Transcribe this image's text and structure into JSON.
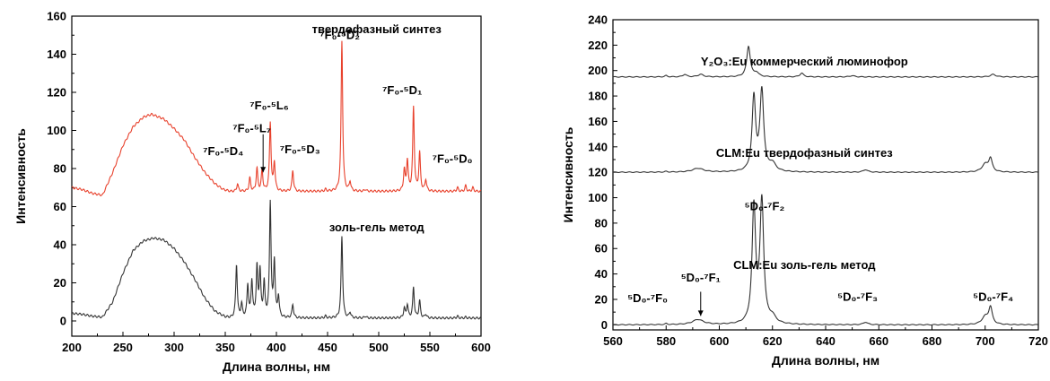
{
  "chart_data": [
    {
      "type": "line",
      "title": "",
      "xlabel": "Длина волны, нм",
      "ylabel": "Интенсивность",
      "xlim": [
        200,
        600
      ],
      "ylim": [
        -8,
        160
      ],
      "xticks": [
        200,
        250,
        300,
        350,
        400,
        450,
        500,
        550,
        600
      ],
      "yticks": [
        0,
        20,
        40,
        60,
        80,
        100,
        120,
        140,
        160
      ],
      "grid": false,
      "legend": "none",
      "series": [
        {
          "name": "твердофазный синтез",
          "color": "#e8412c",
          "broad": [
            [
              200,
              70
            ],
            [
              210,
              69
            ],
            [
              220,
              67
            ],
            [
              230,
              66
            ],
            [
              240,
              78
            ],
            [
              250,
              92
            ],
            [
              260,
              102
            ],
            [
              270,
              107
            ],
            [
              278,
              108.5
            ],
            [
              290,
              106
            ],
            [
              300,
              101
            ],
            [
              310,
              95
            ],
            [
              320,
              86
            ],
            [
              330,
              78
            ],
            [
              340,
              72
            ],
            [
              348,
              69
            ],
            [
              355,
              68
            ]
          ],
          "peaks": [
            [
              362,
              72
            ],
            [
              374,
              75
            ],
            [
              381,
              80
            ],
            [
              386,
              79
            ],
            [
              394,
              104
            ],
            [
              398,
              83
            ],
            [
              416,
              79
            ],
            [
              448,
              69
            ],
            [
              464,
              147
            ],
            [
              472,
              73
            ],
            [
              487,
              69
            ],
            [
              525,
              79
            ],
            [
              528,
              84
            ],
            [
              534,
              112
            ],
            [
              540,
              88
            ],
            [
              546,
              74
            ],
            [
              577,
              70
            ],
            [
              585,
              71
            ],
            [
              592,
              70
            ]
          ]
        },
        {
          "name": "золь-гель метод",
          "color": "#333333",
          "broad": [
            [
              200,
              4
            ],
            [
              210,
              3.5
            ],
            [
              220,
              2.5
            ],
            [
              230,
              2
            ],
            [
              240,
              10
            ],
            [
              250,
              25
            ],
            [
              260,
              37
            ],
            [
              270,
              42
            ],
            [
              280,
              43.5
            ],
            [
              290,
              42.5
            ],
            [
              300,
              38
            ],
            [
              310,
              31
            ],
            [
              320,
              22
            ],
            [
              330,
              12
            ],
            [
              340,
              5
            ],
            [
              350,
              2
            ],
            [
              355,
              1.5
            ]
          ],
          "peaks": [
            [
              361,
              29
            ],
            [
              366,
              8
            ],
            [
              372,
              18
            ],
            [
              376,
              20
            ],
            [
              381,
              27
            ],
            [
              384,
              25
            ],
            [
              388,
              19
            ],
            [
              394,
              61
            ],
            [
              398,
              30
            ],
            [
              402,
              12
            ],
            [
              416,
              8
            ],
            [
              448,
              2
            ],
            [
              464,
              44
            ],
            [
              472,
              4
            ],
            [
              487,
              2
            ],
            [
              525,
              6
            ],
            [
              528,
              8
            ],
            [
              534,
              17
            ],
            [
              540,
              10
            ],
            [
              546,
              3
            ],
            [
              577,
              2
            ],
            [
              585,
              1.5
            ],
            [
              592,
              1
            ]
          ]
        }
      ],
      "annotations": [
        {
          "text": "твердофазный синтез",
          "x": 498,
          "y": 151
        },
        {
          "text": "золь-гель метод",
          "x": 498,
          "y": 47
        },
        {
          "text": "⁷F₀-⁵D₂",
          "x": 462,
          "y": 148
        },
        {
          "text": "⁷F₀-⁵L₆",
          "x": 393,
          "y": 111
        },
        {
          "text": "⁷F₀-⁵L₇",
          "x": 376,
          "y": 99
        },
        {
          "text": "⁷F₀-⁵D₄",
          "x": 348,
          "y": 87
        },
        {
          "text": "⁷F₀-⁵D₃",
          "x": 423,
          "y": 88
        },
        {
          "text": "⁷F₀-⁵D₁",
          "x": 523,
          "y": 119
        },
        {
          "text": "⁷F₀-⁵D₀",
          "x": 572,
          "y": 83
        }
      ]
    },
    {
      "type": "line",
      "title": "",
      "xlabel": "Длина волны, нм",
      "ylabel": "Интенсивность",
      "xlim": [
        560,
        720
      ],
      "ylim": [
        -4,
        240
      ],
      "xticks": [
        560,
        580,
        600,
        620,
        640,
        660,
        680,
        700,
        720
      ],
      "yticks": [
        0,
        20,
        40,
        60,
        80,
        100,
        120,
        140,
        160,
        180,
        200,
        220,
        240
      ],
      "grid": false,
      "legend": "none",
      "series": [
        {
          "name": "Y₂O₃:Eu коммерческий люминофор",
          "color": "#333333",
          "base": 195,
          "peaks": [
            [
              580,
              1,
              0.6
            ],
            [
              587,
              2,
              0.8
            ],
            [
              593,
              2,
              1.2
            ],
            [
              611,
              24,
              0.8
            ],
            [
              614,
              3,
              1
            ],
            [
              631,
              3,
              0.8
            ],
            [
              650,
              1,
              1
            ],
            [
              703,
              2,
              1.2
            ]
          ]
        },
        {
          "name": "CLM:Eu твердофазный синтез",
          "color": "#333333",
          "base": 120,
          "peaks": [
            [
              580,
              0.5,
              0.6
            ],
            [
              592,
              3,
              2.5
            ],
            [
              613,
              58,
              0.8
            ],
            [
              616,
              63,
              0.85
            ],
            [
              620,
              6,
              1.5
            ],
            [
              655,
              2,
              1
            ],
            [
              700,
              6,
              1.5
            ],
            [
              702,
              10,
              0.8
            ]
          ]
        },
        {
          "name": "CLM:Eu золь-гель метод",
          "color": "#333333",
          "base": 0,
          "peaks": [
            [
              580,
              0.8,
              0.5
            ],
            [
              592,
              4,
              2.5
            ],
            [
              613,
              91,
              0.8
            ],
            [
              616,
              96,
              0.85
            ],
            [
              620,
              5,
              1.5
            ],
            [
              655,
              2,
              1
            ],
            [
              700,
              6,
              1.5
            ],
            [
              702,
              13,
              0.8
            ]
          ]
        }
      ],
      "annotations": [
        {
          "text": "Y₂O₃:Eu коммерческий люминофор",
          "x": 632,
          "y": 204
        },
        {
          "text": "CLM:Eu твердофазный синтез",
          "x": 632,
          "y": 132
        },
        {
          "text": "CLM:Eu золь-гель метод",
          "x": 632,
          "y": 44
        },
        {
          "text": "⁵D₀-⁷F₂",
          "x": 617,
          "y": 90
        },
        {
          "text": "⁵D₀-⁷F₀",
          "x": 573,
          "y": 18
        },
        {
          "text": "⁵D₀-⁷F₁",
          "x": 593,
          "y": 34
        },
        {
          "text": "⁵D₀-⁷F₃",
          "x": 652,
          "y": 19
        },
        {
          "text": "⁵D₀-⁷F₄",
          "x": 703,
          "y": 19
        }
      ]
    }
  ]
}
